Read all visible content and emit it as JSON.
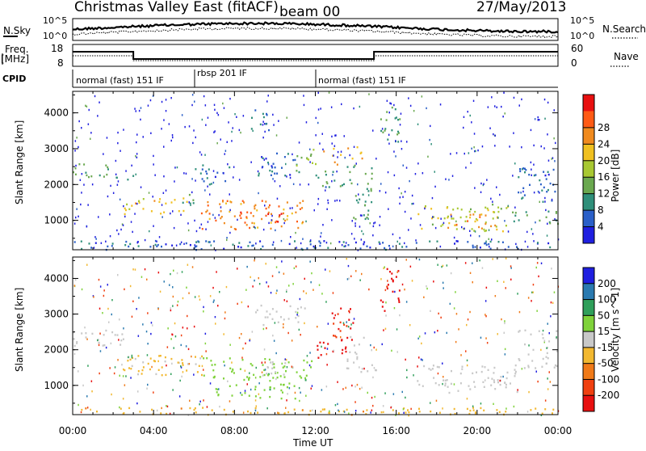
{
  "header": {
    "title": "Christmas Valley East (fitACF)",
    "beam": "beam 00",
    "date": "27/May/2013"
  },
  "strip_panels": {
    "nsky_label": "N.Sky",
    "nsky_ticks": [
      "10^5",
      "10^0"
    ],
    "nsearch_label": "N.Search",
    "nsearch_ticks": [
      "10^5",
      "10^0"
    ],
    "freq_label_1": "Freq.",
    "freq_label_2": "[MHz]",
    "freq_ticks": [
      "18",
      "8"
    ],
    "nave_label": "Nave",
    "nave_ticks": [
      "60",
      "0"
    ],
    "cpid_label": "CPID",
    "cpid_segments": [
      {
        "label": "normal (fast) 151 IF",
        "start": 0,
        "end": 6
      },
      {
        "label": "rbsp 201 IF",
        "start": 6,
        "end": 12
      },
      {
        "label": "normal (fast) 151 IF",
        "start": 12,
        "end": 24
      }
    ]
  },
  "chart_data": [
    {
      "type": "heatmap",
      "title": "",
      "xlabel": "Time UT",
      "ylabel": "Slant Range [km]",
      "xlim": [
        0,
        24
      ],
      "ylim": [
        180,
        4600
      ],
      "x_ticks": [
        "00:00",
        "04:00",
        "08:00",
        "12:00",
        "16:00",
        "20:00",
        "00:00"
      ],
      "y_ticks": [
        "1000",
        "2000",
        "3000",
        "4000"
      ],
      "colorbar_label": "Power [dB]",
      "colorbar_ticks": [
        "4",
        "8",
        "12",
        "16",
        "20",
        "24",
        "28"
      ],
      "colorbar_colors": [
        "#1f1fe0",
        "#2a5fc8",
        "#2f8f7a",
        "#6aa84f",
        "#a8c832",
        "#f0c020",
        "#f08a1e",
        "#ff5a14",
        "#e81010"
      ],
      "colorbar_range": [
        0,
        30
      ],
      "regions": [
        {
          "x": [
            0,
            1.8
          ],
          "r": [
            2200,
            2600
          ],
          "level": 10
        },
        {
          "x": [
            1.8,
            3.0
          ],
          "r": [
            2000,
            2300
          ],
          "level": 8
        },
        {
          "x": [
            2.5,
            6.0
          ],
          "r": [
            1200,
            1700
          ],
          "level": 18
        },
        {
          "x": [
            5.3,
            6.0
          ],
          "r": [
            1400,
            1800
          ],
          "level": 12
        },
        {
          "x": [
            5.8,
            7.8
          ],
          "r": [
            2000,
            2600
          ],
          "level": 6
        },
        {
          "x": [
            6.3,
            11.5
          ],
          "r": [
            750,
            1600
          ],
          "level": 22
        },
        {
          "x": [
            8.2,
            10.5
          ],
          "r": [
            900,
            1300
          ],
          "level": 27
        },
        {
          "x": [
            9.0,
            11.2
          ],
          "r": [
            2200,
            2900
          ],
          "level": 6
        },
        {
          "x": [
            8.8,
            9.8
          ],
          "r": [
            3500,
            4100
          ],
          "level": 6
        },
        {
          "x": [
            10.7,
            12.0
          ],
          "r": [
            2400,
            3000
          ],
          "level": 14
        },
        {
          "x": [
            12.0,
            13.5
          ],
          "r": [
            1900,
            2400
          ],
          "level": 9
        },
        {
          "x": [
            12.3,
            14.3
          ],
          "r": [
            2500,
            3100
          ],
          "level": 20
        },
        {
          "x": [
            13.5,
            14.8
          ],
          "r": [
            1000,
            2600
          ],
          "level": 10
        },
        {
          "x": [
            15.2,
            16.2
          ],
          "r": [
            3200,
            4300
          ],
          "level": 10
        },
        {
          "x": [
            17.0,
            21.5
          ],
          "r": [
            700,
            1500
          ],
          "level": 16
        },
        {
          "x": [
            18.5,
            21.0
          ],
          "r": [
            800,
            1200
          ],
          "level": 21
        },
        {
          "x": [
            21.5,
            24.0
          ],
          "r": [
            900,
            1300
          ],
          "level": 10
        },
        {
          "x": [
            22.0,
            24.0
          ],
          "r": [
            1500,
            2500
          ],
          "level": 6
        },
        {
          "x": [
            0,
            24
          ],
          "r": [
            200,
            450
          ],
          "level": 5
        }
      ]
    },
    {
      "type": "heatmap",
      "title": "",
      "xlabel": "Time UT",
      "ylabel": "Slant Range [km]",
      "xlim": [
        0,
        24
      ],
      "ylim": [
        180,
        4600
      ],
      "x_ticks": [
        "00:00",
        "04:00",
        "08:00",
        "12:00",
        "16:00",
        "20:00",
        "00:00"
      ],
      "y_ticks": [
        "1000",
        "2000",
        "3000",
        "4000"
      ],
      "colorbar_label": "Velocity [m s^-1]",
      "colorbar_ticks": [
        "200",
        "100",
        "50",
        "15",
        "-15",
        "-50",
        "-100",
        "-200"
      ],
      "colorbar_colors": [
        "#1f1fe0",
        "#2a7ab0",
        "#2f9f5a",
        "#7fd23a",
        "#c8c8c8",
        "#f2b830",
        "#f07a18",
        "#f04010",
        "#e81010"
      ],
      "colorbar_range": [
        -250,
        250
      ],
      "regions": [
        {
          "x": [
            0,
            2.5
          ],
          "r": [
            2100,
            2600
          ],
          "level": 0
        },
        {
          "x": [
            2.5,
            6.5
          ],
          "r": [
            1300,
            1900
          ],
          "level": -25
        },
        {
          "x": [
            5.8,
            6.3
          ],
          "r": [
            1500,
            1900
          ],
          "level": 0
        },
        {
          "x": [
            6.3,
            11.8
          ],
          "r": [
            1000,
            1800
          ],
          "level": 40
        },
        {
          "x": [
            7.0,
            11.0
          ],
          "r": [
            650,
            1000
          ],
          "level": 40
        },
        {
          "x": [
            9.5,
            11.0
          ],
          "r": [
            1300,
            1700
          ],
          "level": 0
        },
        {
          "x": [
            9.0,
            11.5
          ],
          "r": [
            2700,
            3300
          ],
          "level": 0
        },
        {
          "x": [
            12.0,
            13.5
          ],
          "r": [
            1800,
            2300
          ],
          "level": -220
        },
        {
          "x": [
            12.8,
            14.0
          ],
          "r": [
            2300,
            3200
          ],
          "level": -200
        },
        {
          "x": [
            13.5,
            15.0
          ],
          "r": [
            1400,
            2400
          ],
          "level": 0
        },
        {
          "x": [
            15.2,
            16.2
          ],
          "r": [
            3100,
            4300
          ],
          "level": -210
        },
        {
          "x": [
            17.0,
            22.0
          ],
          "r": [
            800,
            1600
          ],
          "level": 0
        },
        {
          "x": [
            22.0,
            24.0
          ],
          "r": [
            1500,
            2600
          ],
          "level": 0
        },
        {
          "x": [
            0,
            24
          ],
          "r": [
            200,
            400
          ],
          "level": -40
        }
      ]
    }
  ],
  "colors": {
    "frame": "#000000",
    "background": "#ffffff"
  }
}
